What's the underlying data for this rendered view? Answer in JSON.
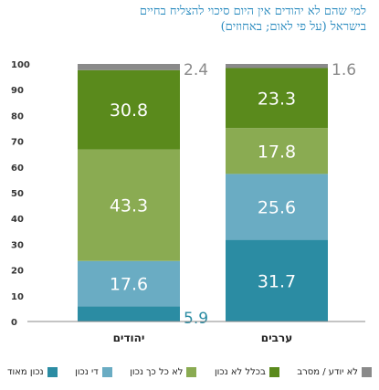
{
  "chart_data": {
    "type": "bar",
    "stacked": true,
    "title": "למי שהם לא יהודים אין היום סיכוי להצליח בחיים בישראל (על פי לאום; באחוזים)",
    "title_lines": [
      "למי שהם לא יהודים אין היום סיכוי להצליח בחיים",
      "בישראל (על פי לאום; באחוזים)"
    ],
    "categories": [
      "יהודים",
      "ערבים"
    ],
    "ylim": [
      0,
      100
    ],
    "yticks": [
      0,
      10,
      20,
      30,
      40,
      50,
      60,
      70,
      80,
      90,
      100
    ],
    "grid": false,
    "legend_position": "bottom",
    "series": [
      {
        "name": "נכון מאוד",
        "color": "#2b8ca3",
        "values": [
          5.9,
          31.7
        ]
      },
      {
        "name": "די נכון",
        "color": "#6aacc3",
        "values": [
          17.6,
          25.6
        ]
      },
      {
        "name": "לא כל כך נכון",
        "color": "#8aab52",
        "values": [
          43.3,
          17.8
        ]
      },
      {
        "name": "בכלל לא נכון",
        "color": "#5a8a1c",
        "values": [
          30.8,
          23.3
        ]
      },
      {
        "name": "לא יודע / מסרב",
        "color": "#8a8a8a",
        "values": [
          2.4,
          1.6
        ]
      }
    ]
  }
}
